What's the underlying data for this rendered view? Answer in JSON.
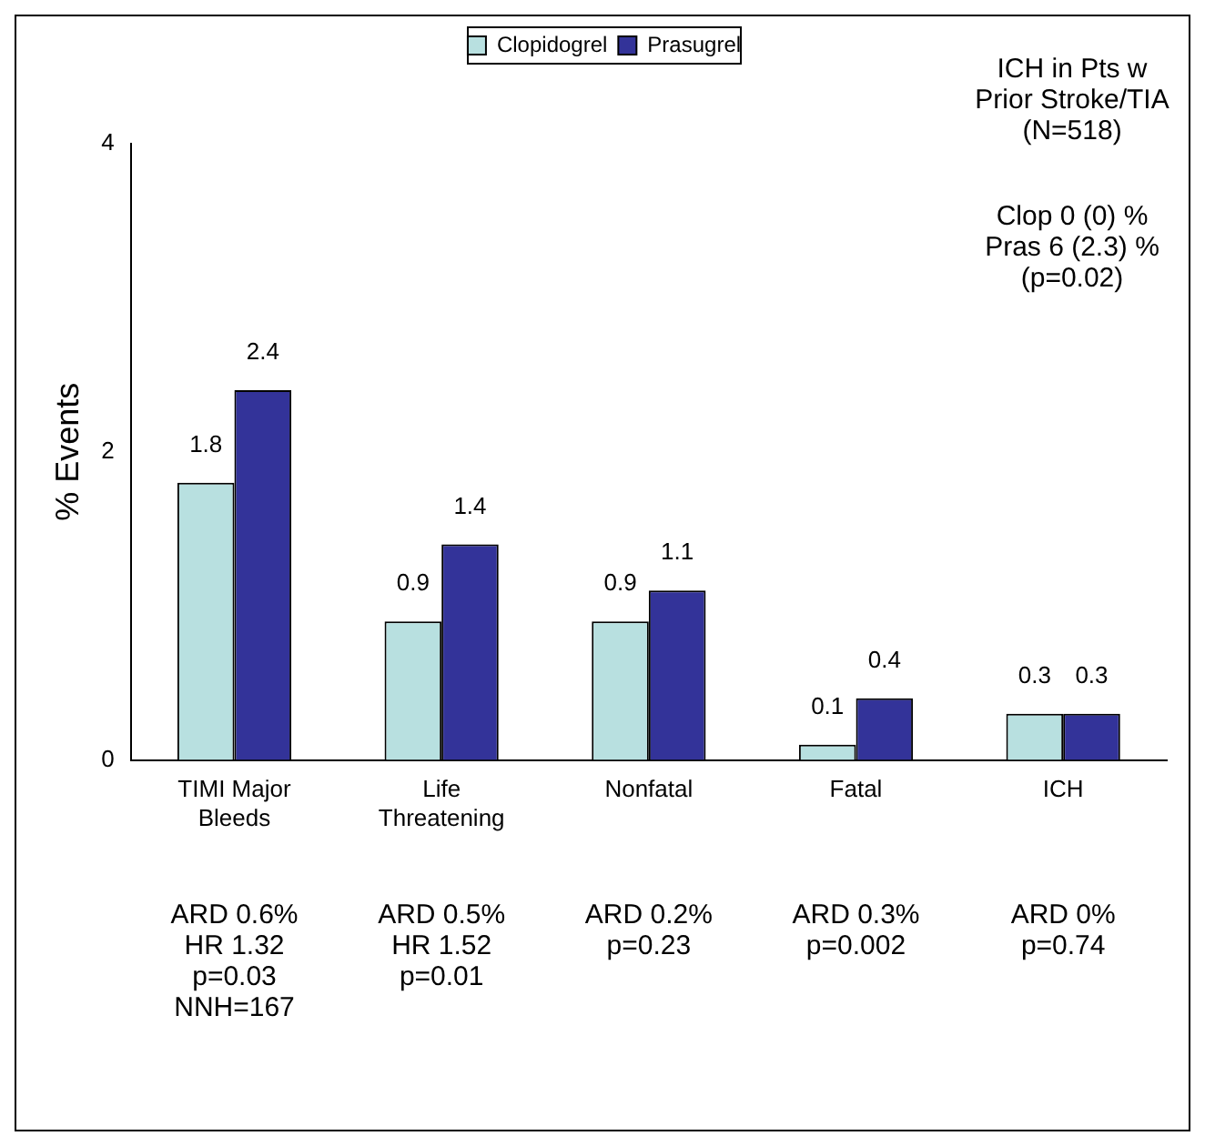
{
  "chart_data": {
    "type": "bar",
    "ylabel": "% Events",
    "categories": [
      "TIMI Major\nBleeds",
      "Life\nThreatening",
      "Nonfatal",
      "Fatal",
      "ICH"
    ],
    "series": [
      {
        "name": "Clopidogrel",
        "color": "#b8e0e0",
        "values": [
          1.8,
          0.9,
          0.9,
          0.1,
          0.3
        ]
      },
      {
        "name": "Prasugrel",
        "color": "#333399",
        "values": [
          2.4,
          1.4,
          1.1,
          0.4,
          0.3
        ]
      }
    ],
    "ylim": [
      0,
      4
    ],
    "yticks": [
      0,
      2,
      4
    ],
    "grid": false,
    "legend": "top",
    "data_labels": true,
    "annotations": [
      "ARD 0.6%\nHR 1.32\np=0.03\nNNH=167",
      "ARD 0.5%\nHR 1.52\np=0.01",
      "ARD 0.2%\np=0.23",
      "ARD 0.3%\np=0.002",
      "ARD 0%\np=0.74",
      "ICH in Pts w\nPrior Stroke/TIA\n(N=518)",
      "Clop 0 (0) %\nPras 6 (2.3) %\n(p=0.02)"
    ]
  }
}
